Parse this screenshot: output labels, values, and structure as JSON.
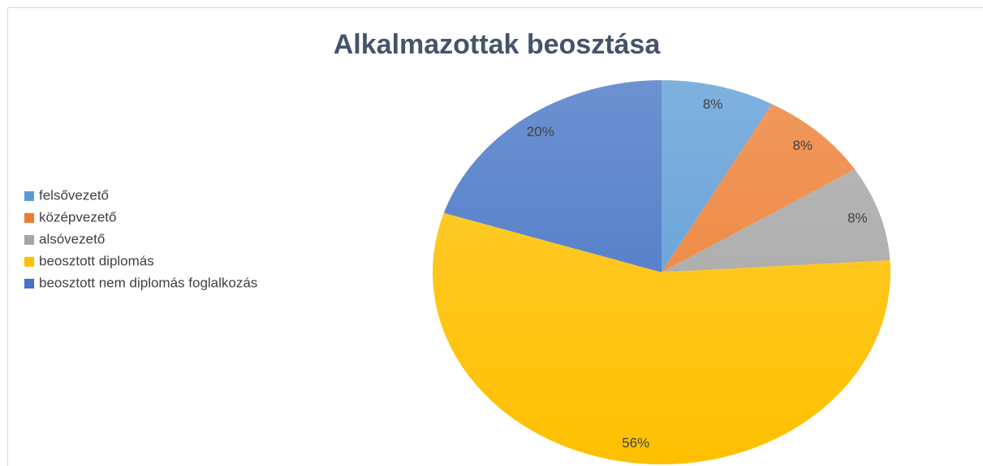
{
  "chart_data": {
    "type": "pie",
    "title": "Alkalmazottak beosztása",
    "categories": [
      "felsővezető",
      "középvezető",
      "alsóvezető",
      "beosztott diplomás",
      "beosztott nem diplomás foglalkozás"
    ],
    "values": [
      8,
      8,
      8,
      56,
      20
    ],
    "value_labels": [
      "8%",
      "8%",
      "8%",
      "56%",
      "20%"
    ],
    "colors": [
      "#5b9bd5",
      "#ed7d31",
      "#a5a5a5",
      "#ffc000",
      "#4472c4"
    ],
    "legend": "left"
  }
}
